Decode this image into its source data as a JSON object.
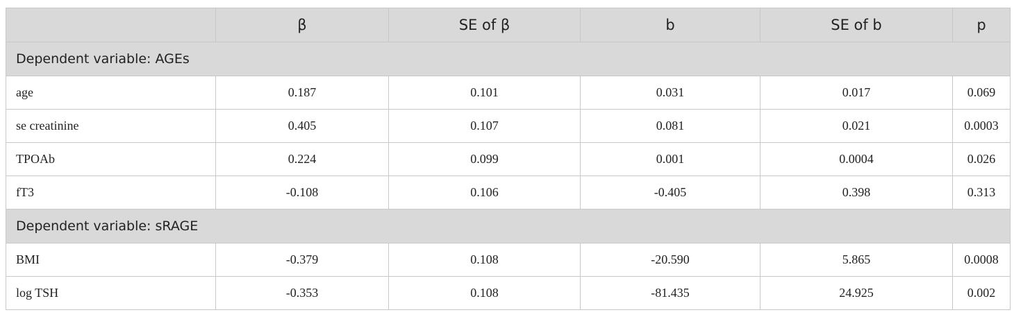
{
  "table": {
    "headers": [
      "",
      "β",
      "SE of β",
      "b",
      "SE of b",
      "p"
    ],
    "sections": [
      {
        "title": "Dependent variable: AGEs",
        "rows": [
          {
            "label": "age",
            "values": [
              "0.187",
              "0.101",
              "0.031",
              "0.017",
              "0.069"
            ]
          },
          {
            "label": "se creatinine",
            "values": [
              "0.405",
              "0.107",
              "0.081",
              "0.021",
              "0.0003"
            ]
          },
          {
            "label": "TPOAb",
            "values": [
              "0.224",
              "0.099",
              "0.001",
              "0.0004",
              "0.026"
            ]
          },
          {
            "label": "fT3",
            "values": [
              "-0.108",
              "0.106",
              "-0.405",
              "0.398",
              "0.313"
            ]
          }
        ]
      },
      {
        "title": "Dependent variable: sRAGE",
        "rows": [
          {
            "label": "BMI",
            "values": [
              "-0.379",
              "0.108",
              "-20.590",
              "5.865",
              "0.0008"
            ]
          },
          {
            "label": "log TSH",
            "values": [
              "-0.353",
              "0.108",
              "-81.435",
              "24.925",
              "0.002"
            ]
          }
        ]
      }
    ]
  }
}
